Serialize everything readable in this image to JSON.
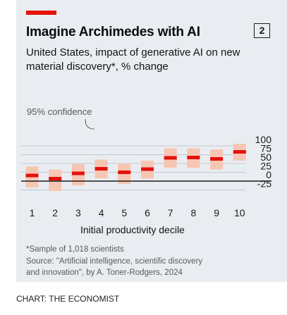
{
  "header": {
    "title": "Imagine Archimedes with AI",
    "chart_number": "2",
    "subtitle": "United States, impact of generative AI on new material discovery*, % change"
  },
  "chart_data": {
    "type": "bar",
    "title": "Imagine Archimedes with AI",
    "subtitle": "United States, impact of generative AI on new material discovery*, % change",
    "xlabel": "Initial productivity decile",
    "ylabel": "",
    "categories": [
      "1",
      "2",
      "3",
      "4",
      "5",
      "6",
      "7",
      "8",
      "9",
      "10"
    ],
    "y_ticks": [
      "100",
      "75",
      "50",
      "25",
      "0",
      "-25"
    ],
    "y_tick_values": [
      100,
      75,
      50,
      25,
      0,
      -25
    ],
    "ylim": [
      -30,
      105
    ],
    "grid": true,
    "series": [
      {
        "name": "95% confidence",
        "type": "range",
        "values": [
          [
            -18,
            42
          ],
          [
            -28,
            33
          ],
          [
            -12,
            48
          ],
          [
            8,
            61
          ],
          [
            -8,
            50
          ],
          [
            7,
            58
          ],
          [
            38,
            93
          ],
          [
            38,
            93
          ],
          [
            33,
            90
          ],
          [
            58,
            106
          ]
        ]
      },
      {
        "name": "",
        "type": "point",
        "values": [
          16,
          7,
          22,
          35,
          25,
          34,
          66,
          67,
          63,
          83
        ]
      }
    ],
    "annotations": [
      "95% confidence"
    ],
    "colors": {
      "range": "#f7c6b3",
      "point": "#e3120b",
      "zero_line": "#1a1a1a",
      "grid": "#c4c9cd"
    }
  },
  "footnote": {
    "lines": [
      "*Sample of 1,018 scientists",
      "Source: \"Artificial intelligence, scientific discovery",
      "and innovation\", by A. Toner-Rodgers, 2024"
    ]
  },
  "credit": "CHART: THE ECONOMIST"
}
